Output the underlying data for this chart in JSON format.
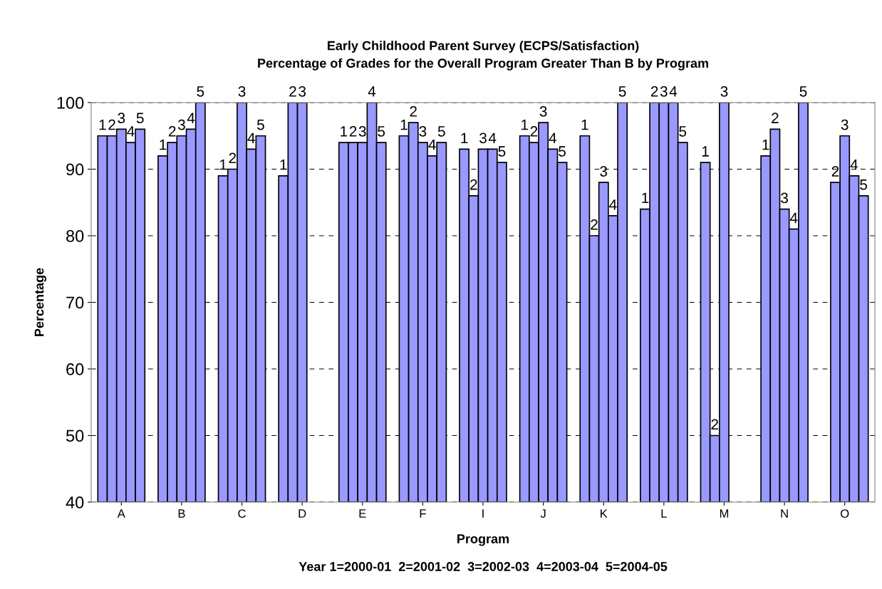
{
  "chart_data": {
    "type": "bar",
    "title": "Early Childhood Parent Survey (ECPS/Satisfaction)\nPercentage of Grades for the Overall Program Greater Than B by Program",
    "xlabel": "Program",
    "ylabel": "Percentage",
    "annotations": [
      "Year 1=2000-01  2=2001-02  3=2002-03  4=2003-04  5=2004-05"
    ],
    "categories": [
      "A",
      "B",
      "C",
      "D",
      "E",
      "F",
      "I",
      "J",
      "K",
      "L",
      "M",
      "N",
      "O"
    ],
    "series": [
      {
        "name": "1",
        "color": "#9999ff",
        "values": [
          95,
          92,
          89,
          89,
          94,
          95,
          93,
          95,
          95,
          84,
          91,
          92,
          null
        ]
      },
      {
        "name": "2",
        "color": "#9999ff",
        "values": [
          95,
          94,
          90,
          100,
          94,
          97,
          86,
          94,
          80,
          100,
          50,
          96,
          88
        ]
      },
      {
        "name": "3",
        "color": "#9999ff",
        "values": [
          96,
          95,
          100,
          100,
          94,
          94,
          93,
          97,
          88,
          100,
          100,
          84,
          95
        ]
      },
      {
        "name": "4",
        "color": "#9999ff",
        "values": [
          94,
          96,
          93,
          null,
          100,
          92,
          93,
          93,
          83,
          100,
          null,
          81,
          89
        ]
      },
      {
        "name": "5",
        "color": "#9999ff",
        "values": [
          96,
          100,
          95,
          null,
          94,
          94,
          91,
          91,
          100,
          94,
          null,
          100,
          86
        ]
      }
    ],
    "ylim": [
      40,
      100
    ],
    "yticks": [
      40,
      50,
      60,
      70,
      80,
      90,
      100
    ],
    "grid": "y",
    "legend": false
  }
}
